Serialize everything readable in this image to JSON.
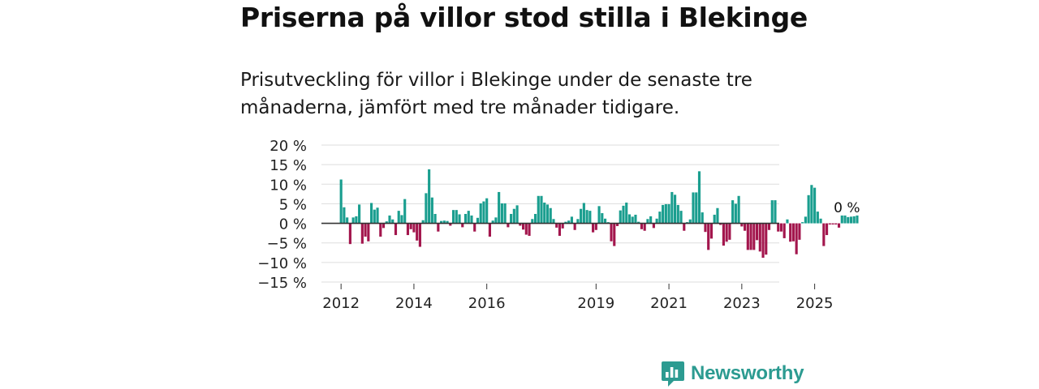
{
  "title": "Priserna på villor stod stilla i Blekinge",
  "subtitle": "Prisutveckling för villor i Blekinge under de senaste tre månaderna, jämfört med tre månader tidigare.",
  "brand": {
    "name": "Newsworthy"
  },
  "colors": {
    "positive": "#1a9e8f",
    "negative": "#a3164d",
    "grid": "#dddddd",
    "axis": "#333333",
    "text": "#222222"
  },
  "chart_data": {
    "type": "bar",
    "title": "Priserna på villor stod stilla i Blekinge",
    "xlabel": "",
    "ylabel": "",
    "ylim": [
      -15,
      20
    ],
    "yticks": [
      20,
      15,
      10,
      5,
      0,
      -5,
      -10,
      -15
    ],
    "ytick_labels": [
      "20 %",
      "15 %",
      "10 %",
      "5 %",
      "0 %",
      "−5 %",
      "−10 %",
      "−15 %"
    ],
    "x_start": {
      "year": 2012,
      "month": 1
    },
    "xtick_labels": [
      "2012",
      "2014",
      "2016",
      "2019",
      "2021",
      "2023",
      "2025"
    ],
    "xtick_years": [
      2012,
      2014,
      2016,
      2019,
      2021,
      2023,
      2025
    ],
    "annotation": "0 %",
    "values": [
      11.2,
      4.1,
      1.5,
      -5.3,
      1.5,
      1.8,
      4.8,
      -5.2,
      -3.4,
      -4.6,
      5.2,
      3.5,
      4.0,
      -3.4,
      -1.2,
      0.5,
      2.0,
      1.0,
      -3.0,
      3.2,
      2.1,
      6.2,
      -3.0,
      -1.5,
      -2.3,
      -4.4,
      -6.0,
      0.8,
      7.7,
      13.8,
      6.6,
      2.4,
      -2.1,
      0.6,
      0.7,
      0.6,
      -0.6,
      3.4,
      3.4,
      2.3,
      -1.0,
      2.4,
      3.2,
      2.0,
      -2.1,
      1.4,
      5.1,
      5.6,
      6.4,
      -3.4,
      0.7,
      1.5,
      8.0,
      5.1,
      5.1,
      -1.0,
      2.4,
      3.7,
      4.6,
      -0.6,
      -1.6,
      -2.9,
      -3.2,
      1.1,
      2.4,
      7.0,
      7.0,
      5.3,
      4.8,
      3.9,
      1.1,
      -1.1,
      -3.2,
      -1.3,
      0.4,
      0.7,
      1.7,
      -1.7,
      1.1,
      3.7,
      5.2,
      3.4,
      3.2,
      -2.3,
      -1.7,
      4.4,
      2.6,
      1.2,
      0.3,
      -4.6,
      -5.8,
      -0.7,
      3.3,
      4.5,
      5.3,
      2.3,
      1.7,
      2.2,
      0.4,
      -1.5,
      -1.9,
      1.1,
      1.8,
      -1.2,
      1.2,
      3.0,
      4.7,
      4.9,
      4.9,
      8.0,
      7.3,
      4.7,
      3.2,
      -1.9,
      0.3,
      1.0,
      7.9,
      7.9,
      13.3,
      2.8,
      -2.2,
      -6.8,
      -3.9,
      2.2,
      3.9,
      -0.4,
      -5.7,
      -4.7,
      -4.2,
      5.9,
      5.0,
      7.0,
      -0.8,
      -1.9,
      -6.8,
      -6.8,
      -6.8,
      -4.3,
      -7.2,
      -8.8,
      -8.0,
      -1.7,
      5.9,
      5.9,
      -2.1,
      -2.1,
      -3.8,
      1.0,
      -4.7,
      -4.6,
      -7.9,
      -4.2,
      0.3,
      1.7,
      7.2,
      9.8,
      9.1,
      3.0,
      1.2,
      -5.8,
      -3.0,
      -0.3,
      -0.3,
      -0.3,
      -1.1,
      2.0,
      2.0,
      1.6,
      1.7,
      1.8,
      2.0
    ]
  }
}
